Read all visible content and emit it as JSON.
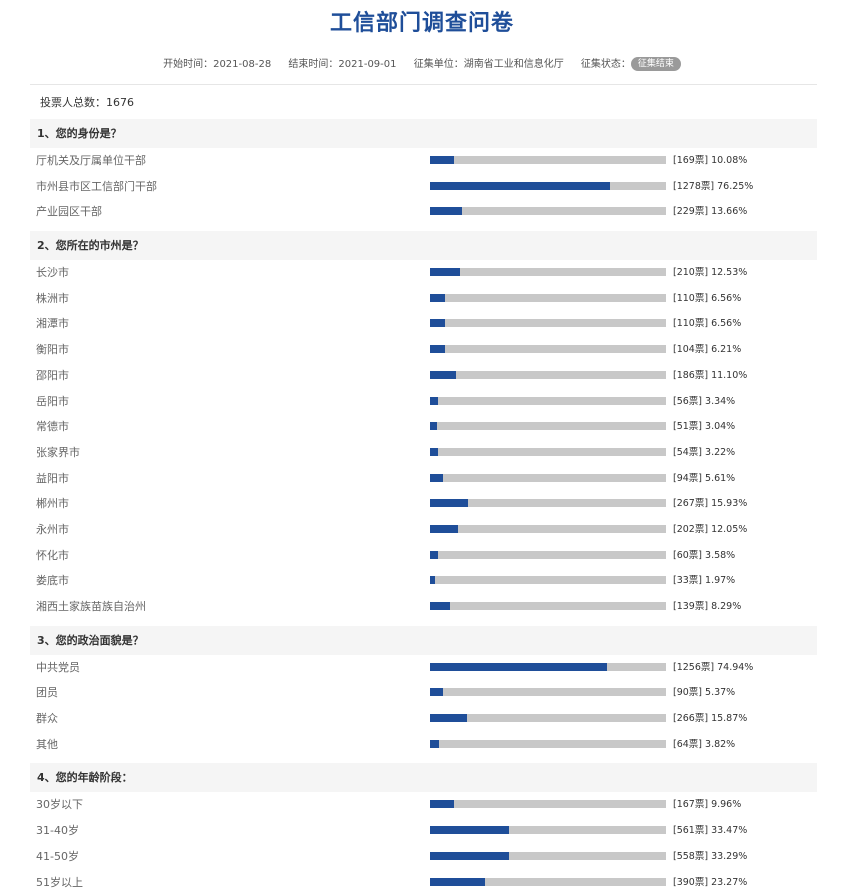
{
  "title": "工信部门调查问卷",
  "meta": {
    "start": "开始时间：2021-08-28",
    "end": "结束时间：2021-09-01",
    "org": "征集单位：湖南省工业和信息化厅",
    "status_label": "征集状态：",
    "status": "征集结束"
  },
  "total": "投票人总数：1676",
  "questions": [
    {
      "title": "1、您的身份是？",
      "options": [
        {
          "label": "厅机关及厅属单位干部",
          "stat": "[169票] 10.08%",
          "pct": 10.08
        },
        {
          "label": "市州县市区工信部门干部",
          "stat": "[1278票] 76.25%",
          "pct": 76.25
        },
        {
          "label": "产业园区干部",
          "stat": "[229票] 13.66%",
          "pct": 13.66
        }
      ]
    },
    {
      "title": "2、您所在的市州是？",
      "options": [
        {
          "label": "长沙市",
          "stat": "[210票] 12.53%",
          "pct": 12.53
        },
        {
          "label": "株洲市",
          "stat": "[110票] 6.56%",
          "pct": 6.56
        },
        {
          "label": "湘潭市",
          "stat": "[110票] 6.56%",
          "pct": 6.56
        },
        {
          "label": "衡阳市",
          "stat": "[104票] 6.21%",
          "pct": 6.21
        },
        {
          "label": "邵阳市",
          "stat": "[186票] 11.10%",
          "pct": 11.1
        },
        {
          "label": "岳阳市",
          "stat": "[56票] 3.34%",
          "pct": 3.34
        },
        {
          "label": "常德市",
          "stat": "[51票] 3.04%",
          "pct": 3.04
        },
        {
          "label": "张家界市",
          "stat": "[54票] 3.22%",
          "pct": 3.22
        },
        {
          "label": "益阳市",
          "stat": "[94票] 5.61%",
          "pct": 5.61
        },
        {
          "label": "郴州市",
          "stat": "[267票] 15.93%",
          "pct": 15.93
        },
        {
          "label": "永州市",
          "stat": "[202票] 12.05%",
          "pct": 12.05
        },
        {
          "label": "怀化市",
          "stat": "[60票] 3.58%",
          "pct": 3.58
        },
        {
          "label": "娄底市",
          "stat": "[33票] 1.97%",
          "pct": 1.97
        },
        {
          "label": "湘西土家族苗族自治州",
          "stat": "[139票] 8.29%",
          "pct": 8.29
        }
      ]
    },
    {
      "title": "3、您的政治面貌是？",
      "options": [
        {
          "label": "中共党员",
          "stat": "[1256票] 74.94%",
          "pct": 74.94
        },
        {
          "label": "团员",
          "stat": "[90票] 5.37%",
          "pct": 5.37
        },
        {
          "label": "群众",
          "stat": "[266票] 15.87%",
          "pct": 15.87
        },
        {
          "label": "其他",
          "stat": "[64票] 3.82%",
          "pct": 3.82
        }
      ]
    },
    {
      "title": "4、您的年龄阶段：",
      "options": [
        {
          "label": "30岁以下",
          "stat": "[167票] 9.96%",
          "pct": 9.96
        },
        {
          "label": "31-40岁",
          "stat": "[561票] 33.47%",
          "pct": 33.47
        },
        {
          "label": "41-50岁",
          "stat": "[558票] 33.29%",
          "pct": 33.29
        },
        {
          "label": "51岁以上",
          "stat": "[390票] 23.27%",
          "pct": 23.27
        }
      ]
    }
  ],
  "colors": {
    "accent": "#1f4e99",
    "track": "#c8c8c8",
    "header_bg": "#f5f5f5"
  }
}
